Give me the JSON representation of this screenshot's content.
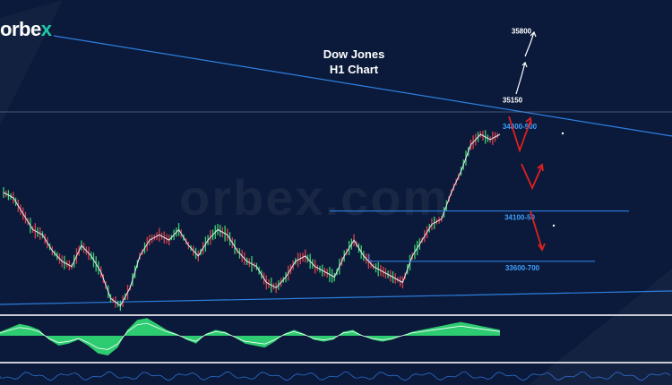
{
  "brand": {
    "logo_text": "orbe",
    "logo_accent": "x"
  },
  "watermark": "orbex.com",
  "chart_data": {
    "type": "line",
    "title": "Dow Jones",
    "subtitle": "H1 Chart",
    "instrument": "Dow Jones",
    "timeframe": "H1",
    "ylim": [
      33200,
      35950
    ],
    "grid": false,
    "price_path": [
      34300,
      34250,
      34100,
      33950,
      33900,
      33750,
      33650,
      33600,
      33800,
      33700,
      33550,
      33300,
      33230,
      33400,
      33700,
      33850,
      33900,
      33850,
      33950,
      33800,
      33700,
      33850,
      33950,
      33900,
      33750,
      33650,
      33600,
      33450,
      33400,
      33500,
      33650,
      33700,
      33600,
      33550,
      33500,
      33700,
      33850,
      33700,
      33600,
      33550,
      33500,
      33450,
      33700,
      33850,
      34000,
      34050,
      34300,
      34500,
      34750,
      34850,
      34800,
      34850
    ],
    "levels": [
      {
        "label": "34800-900",
        "value": 34850
      },
      {
        "label": "34100-50",
        "value": 34125
      },
      {
        "label": "33600-700",
        "value": 33650
      }
    ],
    "targets": [
      {
        "label": "35150",
        "value": 35150
      },
      {
        "label": "35800",
        "value": 35800
      }
    ],
    "oscillator": [
      0.2,
      0.4,
      0.6,
      0.5,
      0.3,
      -0.2,
      -0.5,
      -0.4,
      -0.2,
      -0.5,
      -0.9,
      -1.0,
      -0.6,
      0.3,
      0.8,
      0.9,
      0.6,
      0.3,
      0.1,
      -0.2,
      -0.4,
      0.1,
      0.3,
      0.2,
      -0.1,
      -0.4,
      -0.5,
      -0.6,
      -0.3,
      0.1,
      0.3,
      0.1,
      -0.2,
      -0.3,
      -0.2,
      0.2,
      0.3,
      0.0,
      -0.2,
      -0.3,
      -0.2,
      0.0,
      0.2,
      0.3,
      0.4,
      0.5,
      0.6,
      0.7,
      0.6,
      0.5,
      0.4,
      0.3
    ],
    "colors": {
      "background": "#0b1a3a",
      "trendline": "#2e7fe0",
      "level_label": "#3fa0ff",
      "target_label": "#ffffff",
      "bear_arrow": "#e02020",
      "bull_arrow": "#ffffff",
      "oscillator_fill": "#2ecc71"
    }
  }
}
